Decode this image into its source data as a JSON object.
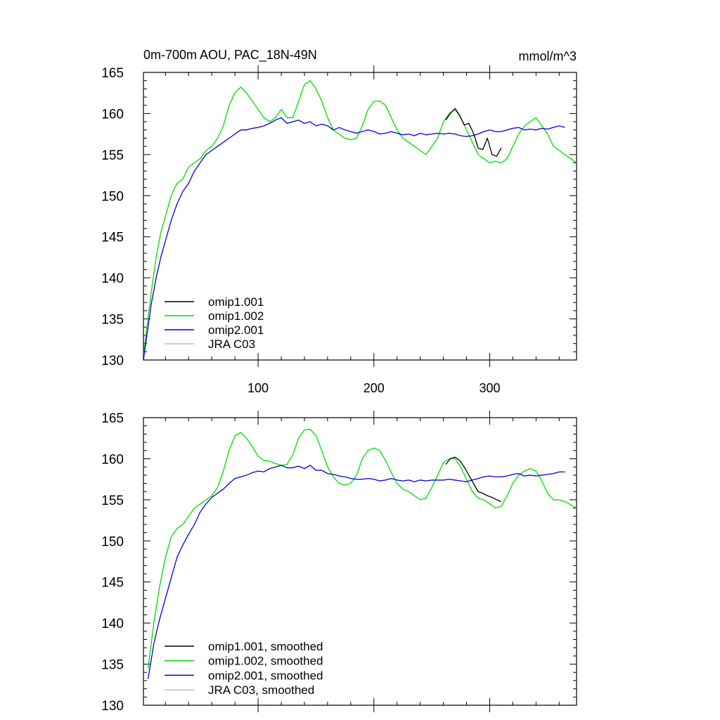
{
  "chart_data": [
    {
      "type": "line",
      "title": "0m-700m AOU, PAC_18N-49N",
      "units": "mmol/m^3",
      "xlim": [
        1,
        375
      ],
      "ylim": [
        130,
        165
      ],
      "xticks": [
        100,
        200,
        300
      ],
      "yticks": [
        130,
        135,
        140,
        145,
        150,
        155,
        160,
        165
      ],
      "xtick_labels": [
        "100",
        "200",
        "300"
      ],
      "ytick_labels": [
        "130",
        "135",
        "140",
        "145",
        "150",
        "155",
        "160",
        "165"
      ],
      "legend_position": "lower-left",
      "series": [
        {
          "name": "omip1.001",
          "color": "#000000",
          "x": [
            262,
            266,
            270,
            274,
            278,
            282,
            286,
            290,
            294,
            298,
            302,
            306,
            310
          ],
          "y": [
            159.2,
            160.0,
            160.6,
            159.8,
            158.6,
            158.8,
            157.6,
            155.8,
            155.6,
            157.0,
            155.0,
            154.8,
            155.8
          ]
        },
        {
          "name": "omip1.002",
          "color": "#00dd00",
          "x": [
            1,
            4,
            8,
            12,
            16,
            20,
            25,
            30,
            35,
            40,
            45,
            50,
            55,
            60,
            65,
            70,
            75,
            80,
            85,
            90,
            95,
            100,
            105,
            110,
            115,
            120,
            125,
            130,
            135,
            140,
            145,
            150,
            155,
            160,
            165,
            170,
            175,
            180,
            185,
            190,
            195,
            200,
            205,
            210,
            215,
            220,
            225,
            230,
            235,
            240,
            245,
            250,
            255,
            260,
            265,
            270,
            275,
            280,
            285,
            290,
            295,
            300,
            305,
            310,
            315,
            320,
            325,
            330,
            335,
            340,
            345,
            350,
            355,
            360,
            365,
            370,
            375
          ],
          "y": [
            130.5,
            134.0,
            138.5,
            142.5,
            145.5,
            147.5,
            150.0,
            151.5,
            152.0,
            153.5,
            154.0,
            154.5,
            155.5,
            156.0,
            157.0,
            158.5,
            161.0,
            162.5,
            163.2,
            162.5,
            161.5,
            160.5,
            159.5,
            159.0,
            159.5,
            160.5,
            159.5,
            159.5,
            161.5,
            163.5,
            164.0,
            163.0,
            161.5,
            159.5,
            158.0,
            157.5,
            157.0,
            156.8,
            157.0,
            158.5,
            160.5,
            161.5,
            161.5,
            161.0,
            159.5,
            158.0,
            157.0,
            156.5,
            156.0,
            155.5,
            155.0,
            156.0,
            157.0,
            159.0,
            160.0,
            160.5,
            159.5,
            158.0,
            156.5,
            155.0,
            154.5,
            154.0,
            154.2,
            154.0,
            154.5,
            156.0,
            157.5,
            158.5,
            159.0,
            159.5,
            158.5,
            157.5,
            156.0,
            155.5,
            155.0,
            154.5,
            154.0
          ]
        },
        {
          "name": "omip2.001",
          "color": "#0000dd",
          "x": [
            1,
            4,
            8,
            12,
            16,
            20,
            25,
            30,
            35,
            40,
            45,
            50,
            55,
            60,
            65,
            70,
            75,
            80,
            85,
            90,
            95,
            100,
            105,
            110,
            115,
            120,
            125,
            130,
            135,
            140,
            145,
            150,
            155,
            160,
            165,
            170,
            175,
            180,
            185,
            190,
            195,
            200,
            205,
            210,
            215,
            220,
            225,
            230,
            235,
            240,
            245,
            250,
            255,
            260,
            265,
            270,
            275,
            280,
            285,
            290,
            295,
            300,
            305,
            310,
            315,
            320,
            325,
            330,
            335,
            340,
            345,
            350,
            355,
            360,
            365
          ],
          "y": [
            130.0,
            133.0,
            137.0,
            140.0,
            142.5,
            144.5,
            147.0,
            149.0,
            150.5,
            151.5,
            153.0,
            154.0,
            155.0,
            155.5,
            156.0,
            156.5,
            157.0,
            157.5,
            158.0,
            158.0,
            158.2,
            158.3,
            158.5,
            158.8,
            159.2,
            159.5,
            158.8,
            159.0,
            159.2,
            158.8,
            159.0,
            158.5,
            158.7,
            158.5,
            158.0,
            158.3,
            158.0,
            157.8,
            157.6,
            157.8,
            158.0,
            157.8,
            157.5,
            157.6,
            157.8,
            157.6,
            157.4,
            157.5,
            157.3,
            157.6,
            157.4,
            157.5,
            157.6,
            157.5,
            157.6,
            157.5,
            157.3,
            157.2,
            157.3,
            157.5,
            157.8,
            158.0,
            157.8,
            157.8,
            158.0,
            158.2,
            158.3,
            158.0,
            158.1,
            158.0,
            158.2,
            158.1,
            158.3,
            158.5,
            158.3
          ]
        },
        {
          "name": "JRA C03",
          "color": "#c0c0c0",
          "x": [],
          "y": []
        }
      ]
    },
    {
      "type": "line",
      "title": "",
      "units": "",
      "xlim": [
        1,
        375
      ],
      "ylim": [
        130,
        165
      ],
      "xticks": [
        100,
        200,
        300
      ],
      "yticks": [
        130,
        135,
        140,
        145,
        150,
        155,
        160,
        165
      ],
      "xtick_labels": [],
      "ytick_labels": [
        "130",
        "135",
        "140",
        "145",
        "150",
        "155",
        "160",
        "165"
      ],
      "legend_position": "lower-left",
      "series": [
        {
          "name": "omip1.001, smoothed",
          "color": "#000000",
          "x": [
            262,
            266,
            270,
            274,
            278,
            282,
            286,
            290,
            294,
            298,
            302,
            306,
            310
          ],
          "y": [
            159.3,
            160.0,
            160.2,
            159.8,
            159.0,
            158.0,
            157.0,
            156.0,
            155.8,
            155.5,
            155.3,
            155.0,
            154.8
          ]
        },
        {
          "name": "omip1.002, smoothed",
          "color": "#00dd00",
          "x": [
            5,
            10,
            15,
            20,
            25,
            30,
            35,
            40,
            45,
            50,
            55,
            60,
            65,
            70,
            75,
            80,
            85,
            90,
            95,
            100,
            105,
            110,
            115,
            120,
            125,
            130,
            135,
            140,
            145,
            150,
            155,
            160,
            165,
            170,
            175,
            180,
            185,
            190,
            195,
            200,
            205,
            210,
            215,
            220,
            225,
            230,
            235,
            240,
            245,
            250,
            255,
            260,
            265,
            270,
            275,
            280,
            285,
            290,
            295,
            300,
            305,
            310,
            315,
            320,
            325,
            330,
            335,
            340,
            345,
            350,
            355,
            360,
            365,
            370,
            375
          ],
          "y": [
            134.5,
            140.0,
            144.5,
            148.0,
            150.5,
            151.5,
            152.0,
            153.0,
            154.0,
            154.5,
            155.0,
            155.5,
            156.5,
            158.5,
            161.0,
            162.8,
            163.2,
            162.5,
            161.5,
            160.3,
            159.8,
            159.7,
            159.4,
            159.2,
            159.3,
            160.5,
            162.5,
            163.5,
            163.6,
            162.8,
            161.0,
            159.0,
            157.8,
            157.0,
            156.8,
            157.0,
            158.0,
            160.0,
            161.0,
            161.3,
            161.0,
            159.8,
            158.3,
            157.0,
            156.3,
            156.0,
            155.5,
            155.0,
            155.2,
            156.5,
            158.0,
            159.5,
            160.0,
            160.0,
            159.0,
            157.5,
            156.0,
            155.2,
            155.0,
            154.5,
            154.0,
            154.2,
            155.5,
            157.0,
            158.0,
            158.5,
            158.8,
            158.5,
            157.3,
            155.8,
            155.0,
            155.0,
            154.8,
            154.4,
            154.0
          ]
        },
        {
          "name": "omip2.001, smoothed",
          "color": "#0000dd",
          "x": [
            5,
            10,
            15,
            20,
            25,
            30,
            35,
            40,
            45,
            50,
            55,
            60,
            65,
            70,
            75,
            80,
            85,
            90,
            95,
            100,
            105,
            110,
            115,
            120,
            125,
            130,
            135,
            140,
            145,
            150,
            155,
            160,
            165,
            170,
            175,
            180,
            185,
            190,
            195,
            200,
            205,
            210,
            215,
            220,
            225,
            230,
            235,
            240,
            245,
            250,
            255,
            260,
            265,
            270,
            275,
            280,
            285,
            290,
            295,
            300,
            305,
            310,
            315,
            320,
            325,
            330,
            335,
            340,
            345,
            350,
            355,
            360,
            365
          ],
          "y": [
            133.2,
            137.5,
            140.5,
            143.0,
            145.5,
            148.0,
            149.5,
            150.8,
            152.0,
            153.5,
            154.5,
            155.3,
            155.8,
            156.3,
            157.0,
            157.6,
            157.8,
            158.0,
            158.3,
            158.5,
            158.4,
            158.8,
            159.0,
            159.2,
            158.9,
            158.9,
            159.1,
            158.8,
            159.2,
            158.6,
            158.6,
            158.2,
            158.1,
            157.9,
            157.8,
            157.6,
            157.5,
            157.5,
            157.6,
            157.5,
            157.3,
            157.4,
            157.6,
            157.4,
            157.3,
            157.4,
            157.2,
            157.4,
            157.3,
            157.4,
            157.4,
            157.4,
            157.5,
            157.4,
            157.3,
            157.2,
            157.4,
            157.6,
            157.8,
            157.9,
            157.8,
            157.8,
            157.9,
            158.1,
            158.2,
            157.9,
            158.0,
            157.9,
            158.0,
            158.1,
            158.2,
            158.4,
            158.4
          ]
        },
        {
          "name": "JRA C03, smoothed",
          "color": "#c0c0c0",
          "x": [],
          "y": []
        }
      ]
    }
  ]
}
